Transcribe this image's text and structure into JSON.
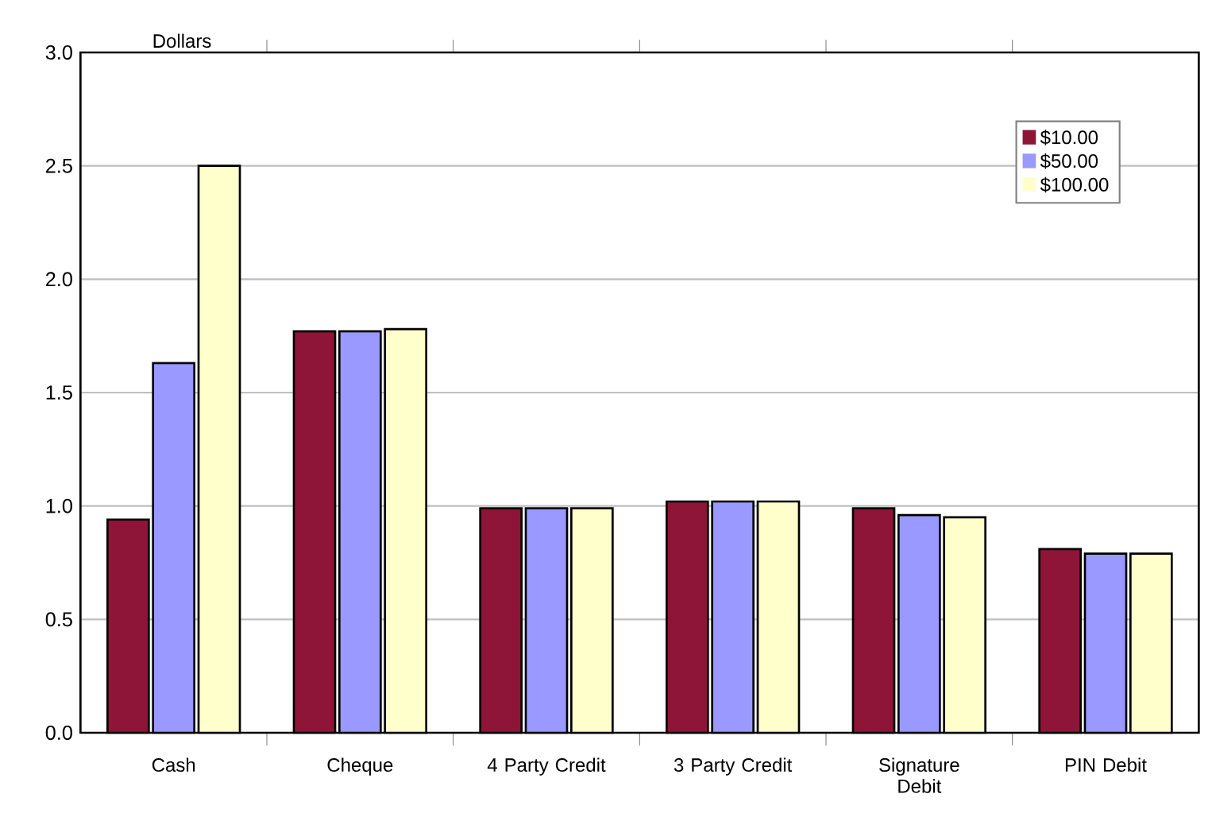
{
  "chart_data": {
    "type": "bar",
    "ylabel": "Dollars",
    "categories": [
      "Cash",
      "Cheque",
      "4 Party Credit",
      "3 Party Credit",
      "Signature Debit",
      "PIN Debit"
    ],
    "series": [
      {
        "name": "$10.00",
        "color": "#8e1538",
        "values": [
          0.94,
          1.77,
          0.99,
          1.02,
          0.99,
          0.81
        ]
      },
      {
        "name": "$50.00",
        "color": "#9999ff",
        "values": [
          1.63,
          1.77,
          0.99,
          1.02,
          0.96,
          0.79
        ]
      },
      {
        "name": "$100.00",
        "color": "#ffffcc",
        "values": [
          2.5,
          1.78,
          0.99,
          1.02,
          0.95,
          0.79
        ]
      }
    ],
    "ylim": [
      0,
      3
    ],
    "yticks": [
      {
        "value": 0,
        "label": "0.0"
      },
      {
        "value": 0.5,
        "label": "0.5"
      },
      {
        "value": 1,
        "label": "1.0"
      },
      {
        "value": 1.5,
        "label": "1.5"
      },
      {
        "value": 2,
        "label": "2.0"
      },
      {
        "value": 2.5,
        "label": "2.5"
      },
      {
        "value": 3,
        "label": "3.0"
      }
    ],
    "grid": "y",
    "legend": "top right"
  }
}
